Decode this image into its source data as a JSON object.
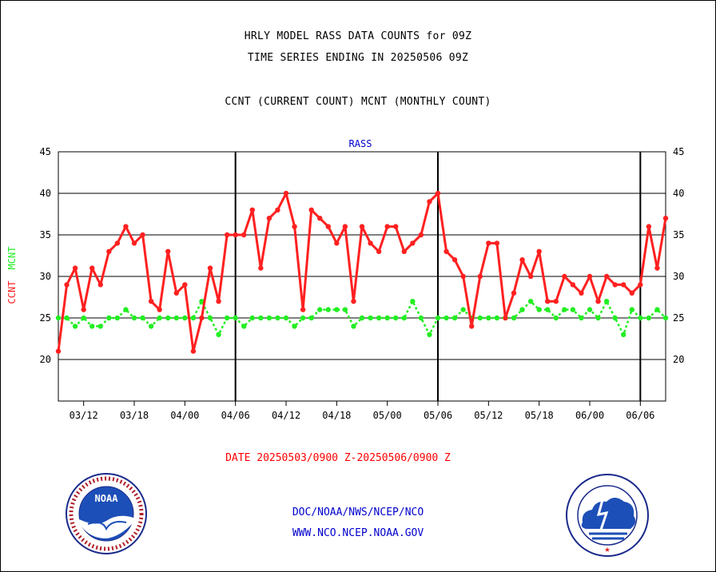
{
  "header": {
    "line1": "HRLY MODEL RASS DATA COUNTS for 09Z",
    "line2": "TIME SERIES ENDING IN 20250506 09Z",
    "line3": "CCNT (CURRENT COUNT) MCNT (MONTHLY COUNT)"
  },
  "footer": {
    "date_line": "DATE 20250503/0900 Z-20250506/0900 Z",
    "org_path": "DOC/NOAA/NWS/NCEP/NCO",
    "website": "WWW.NCO.NCEP.NOAA.GOV"
  },
  "logos": {
    "left": "NOAA",
    "right": "NATIONAL WEATHER SERVICE"
  },
  "colors": {
    "ccnt": "#ff2020",
    "mcnt": "#22ee22",
    "title_blue": "#0000cc",
    "grid": "#000000"
  },
  "chart_data": {
    "type": "line",
    "title": "RASS",
    "ylabel_series": [
      "CCNT",
      "MCNT"
    ],
    "ylim": [
      15,
      45
    ],
    "yticks": [
      20,
      25,
      30,
      35,
      40,
      45
    ],
    "grid": true,
    "x_tick_labels": [
      "03/12",
      "03/18",
      "04/00",
      "04/06",
      "04/12",
      "04/18",
      "05/00",
      "05/06",
      "05/12",
      "05/18",
      "06/00",
      "06/06"
    ],
    "x_tick_index": [
      3,
      9,
      15,
      21,
      27,
      33,
      39,
      45,
      51,
      57,
      63,
      69
    ],
    "day_boundaries_index": [
      21,
      45,
      69
    ],
    "series": [
      {
        "name": "CCNT",
        "values": [
          21,
          29,
          31,
          26,
          31,
          29,
          33,
          34,
          36,
          34,
          35,
          27,
          26,
          33,
          28,
          29,
          21,
          25,
          31,
          27,
          35,
          35,
          35,
          38,
          31,
          37,
          38,
          40,
          36,
          26,
          38,
          37,
          36,
          34,
          36,
          27,
          36,
          34,
          33,
          36,
          36,
          33,
          34,
          35,
          39,
          40,
          33,
          32,
          30,
          24,
          30,
          34,
          34,
          25,
          28,
          32,
          30,
          33,
          27,
          27,
          30,
          29,
          28,
          30,
          27,
          30,
          29,
          29,
          28,
          29,
          36,
          31,
          37
        ]
      },
      {
        "name": "MCNT",
        "values": [
          25,
          25,
          24,
          25,
          24,
          24,
          25,
          25,
          26,
          25,
          25,
          24,
          25,
          25,
          25,
          25,
          25,
          27,
          25,
          23,
          25,
          25,
          24,
          25,
          25,
          25,
          25,
          25,
          24,
          25,
          25,
          26,
          26,
          26,
          26,
          24,
          25,
          25,
          25,
          25,
          25,
          25,
          27,
          25,
          23,
          25,
          25,
          25,
          26,
          25,
          25,
          25,
          25,
          25,
          25,
          26,
          27,
          26,
          26,
          25,
          26,
          26,
          25,
          26,
          25,
          27,
          25,
          23,
          26,
          25,
          25,
          26,
          25
        ]
      }
    ]
  }
}
